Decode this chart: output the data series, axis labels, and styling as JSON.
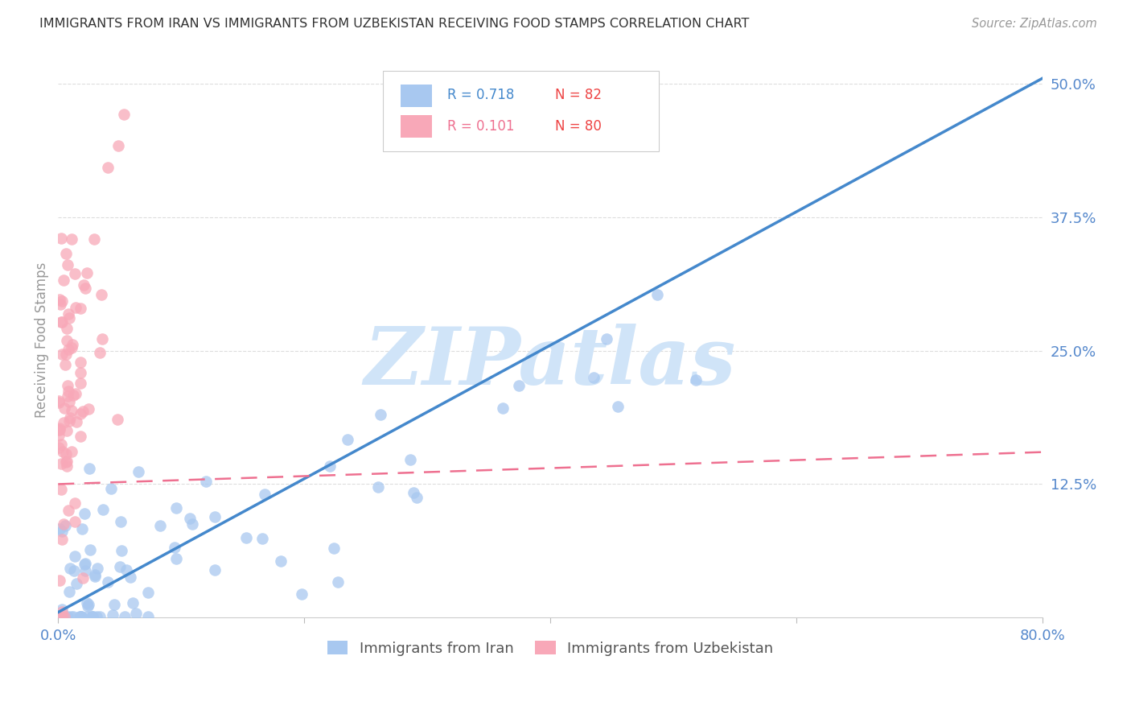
{
  "title": "IMMIGRANTS FROM IRAN VS IMMIGRANTS FROM UZBEKISTAN RECEIVING FOOD STAMPS CORRELATION CHART",
  "source": "Source: ZipAtlas.com",
  "ylabel": "Receiving Food Stamps",
  "iran_R": 0.718,
  "iran_N": 82,
  "uzbek_R": 0.101,
  "uzbek_N": 80,
  "iran_color": "#A8C8F0",
  "uzbek_color": "#F8A8B8",
  "iran_line_color": "#4488CC",
  "uzbek_line_color": "#EE7090",
  "watermark": "ZIPatlas",
  "watermark_color": "#D0E4F8",
  "background_color": "#FFFFFF",
  "grid_color": "#DDDDDD",
  "title_color": "#333333",
  "axis_label_color": "#5588CC",
  "legend_R_iran_color": "#4488CC",
  "legend_R_uzbek_color": "#EE7090",
  "legend_N_color": "#EE4444",
  "xlim": [
    0.0,
    0.8
  ],
  "ylim": [
    0.0,
    0.52
  ],
  "iran_line_x0": 0.0,
  "iran_line_y0": 0.005,
  "iran_line_x1": 0.8,
  "iran_line_y1": 0.505,
  "uzbek_line_x0": 0.0,
  "uzbek_line_y0": 0.125,
  "uzbek_line_x1": 0.8,
  "uzbek_line_y1": 0.155,
  "figsize": [
    14.06,
    8.92
  ],
  "dpi": 100
}
